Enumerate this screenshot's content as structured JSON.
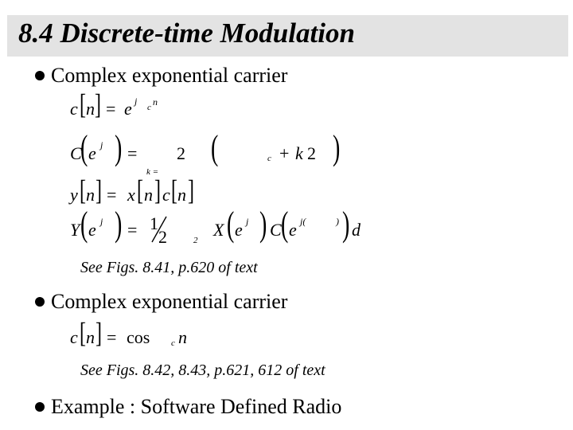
{
  "title": "8.4 Discrete-time Modulation",
  "bullets": [
    {
      "text": "Complex exponential carrier"
    },
    {
      "text": "Complex exponential carrier"
    },
    {
      "text": "Example : Software Defined Radio"
    }
  ],
  "references": [
    "See Figs. 8.41, p.620 of text",
    "See Figs. 8.42, 8.43, p.621, 612 of text"
  ],
  "equations": {
    "eq1": {
      "c": "c",
      "n": "n",
      "eq": "=",
      "e": "e",
      "sup_j": "j",
      "sup_c": "c",
      "sup_n": "n"
    },
    "eq2": {
      "C": "C",
      "e": "e",
      "sup_j": "j",
      "eq": "=",
      "two": "2",
      "paren_l": "(",
      "sub_c": "c",
      "plus": "+",
      "k": "k",
      "two2": "2",
      "paren_r": ")",
      "k_eq": "k ="
    },
    "eq3": {
      "y": "y",
      "n1": "n",
      "eq": "=",
      "x": "x",
      "n2": "n",
      "c": "c",
      "n3": "n"
    },
    "eq4": {
      "Y": "Y",
      "e": "e",
      "sup_j": "j",
      "eq": "=",
      "one": "1",
      "two": "2",
      "sub2": "2",
      "X": "X",
      "e2": "e",
      "sup_j2": "j",
      "C": "C",
      "e3": "e",
      "sup_j3": "j(",
      "sup_close": ")",
      "d": "d"
    },
    "eq5": {
      "c": "c",
      "n": "n",
      "eq": "=",
      "cos": "cos",
      "sub_c": "c",
      "n2": "n"
    }
  }
}
